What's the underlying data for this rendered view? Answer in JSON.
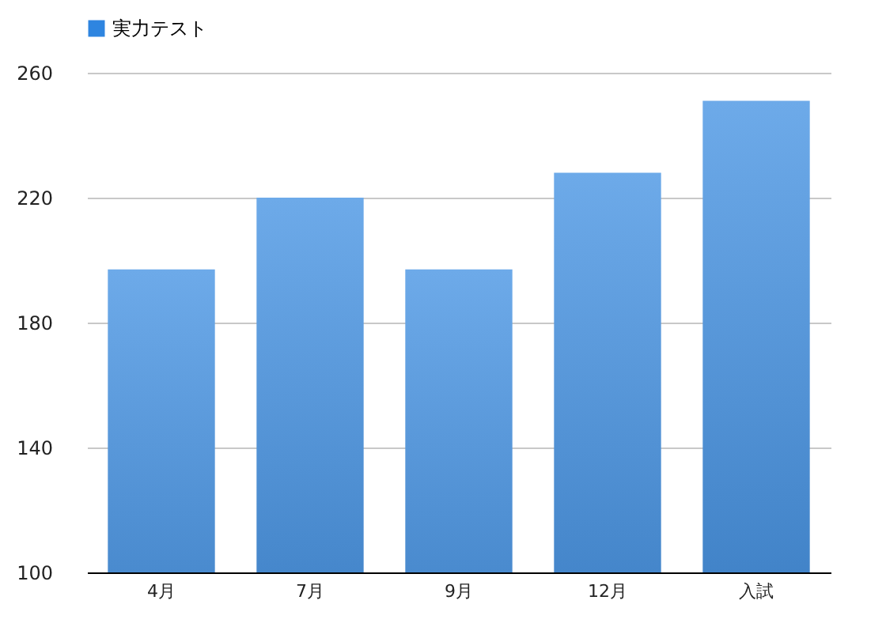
{
  "chart_data": {
    "type": "bar",
    "categories": [
      "4月",
      "7月",
      "9月",
      "12月",
      "入試"
    ],
    "series": [
      {
        "name": "実力テスト",
        "color": "#2e85e0",
        "values": [
          197,
          220,
          197,
          228,
          251
        ]
      }
    ],
    "ylim": [
      100,
      260
    ],
    "yticks": [
      100,
      140,
      180,
      220,
      260
    ],
    "grid": "y",
    "legend": "top"
  }
}
